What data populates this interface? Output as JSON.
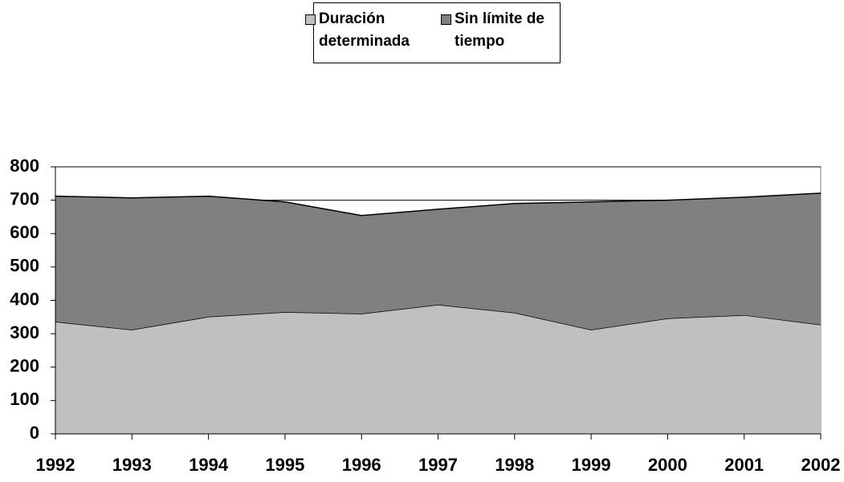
{
  "chart_data": {
    "type": "stacked-area",
    "categories": [
      "1992",
      "1993",
      "1994",
      "1995",
      "1996",
      "1997",
      "1998",
      "1999",
      "2000",
      "2001",
      "2002"
    ],
    "series": [
      {
        "name": "Duración determinada",
        "color": "#c0c0c0",
        "values": [
          336,
          312,
          351,
          365,
          360,
          387,
          363,
          312,
          346,
          356,
          327
        ]
      },
      {
        "name": "Sin límite de tiempo",
        "color": "#808080",
        "values": [
          376,
          395,
          361,
          330,
          294,
          286,
          327,
          383,
          354,
          353,
          394
        ]
      }
    ],
    "ylim": [
      0,
      800
    ],
    "yticks": [
      0,
      100,
      200,
      300,
      400,
      500,
      600,
      700,
      800
    ],
    "grid": true,
    "legend": "top"
  }
}
